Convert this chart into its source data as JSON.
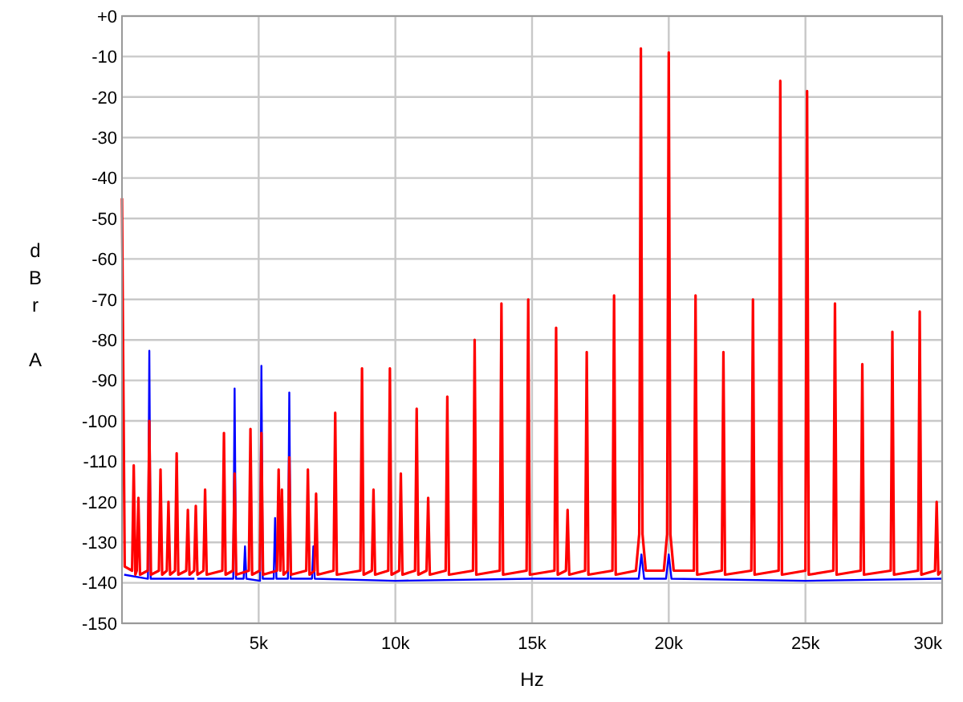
{
  "chart_data": {
    "type": "line",
    "xlabel": "Hz",
    "ylabel": "dBr A",
    "xlim": [
      0,
      30000
    ],
    "ylim": [
      -150,
      0
    ],
    "xticks": [
      {
        "value": 5000,
        "label": "5k"
      },
      {
        "value": 10000,
        "label": "10k"
      },
      {
        "value": 15000,
        "label": "15k"
      },
      {
        "value": 20000,
        "label": "20k"
      },
      {
        "value": 25000,
        "label": "25k"
      },
      {
        "value": 30000,
        "label": "30k"
      }
    ],
    "yticks": [
      {
        "value": 0,
        "label": "+0"
      },
      -10,
      -20,
      -30,
      -40,
      -50,
      -60,
      -70,
      -80,
      -90,
      -100,
      -110,
      -120,
      -130,
      -140,
      -150
    ],
    "grid": true,
    "line_style": "solid",
    "series": [
      {
        "color": "#0000ff",
        "x": [
          80,
          950,
          1000,
          1050,
          2650,
          2700,
          2750,
          4070,
          4120,
          4170,
          4450,
          4500,
          4550,
          5050,
          5100,
          5150,
          5550,
          5600,
          5650,
          6070,
          6120,
          6170,
          6950,
          7000,
          7050,
          10000,
          15000,
          18900,
          19000,
          19100,
          19900,
          20000,
          20100,
          25000,
          30000
        ],
        "values": [
          -138,
          -139,
          -82.7,
          -139,
          -139,
          null,
          -139,
          -139,
          -92,
          -139,
          -139,
          -131,
          -139,
          -139.5,
          -86.4,
          -139,
          -139,
          -124,
          -139,
          -139,
          -93,
          -139,
          -139,
          -131,
          -139,
          -139.5,
          -139,
          -139,
          -133,
          -139,
          -139,
          -133,
          -139,
          -139.5,
          -139
        ]
      },
      {
        "color": "#ff0000",
        "x": [
          0,
          100,
          370,
          430,
          490,
          540,
          600,
          660,
          940,
          1000,
          1060,
          1350,
          1410,
          1470,
          1640,
          1700,
          1760,
          1940,
          2000,
          2060,
          2350,
          2410,
          2470,
          2640,
          2700,
          2760,
          2980,
          3040,
          3100,
          3670,
          3730,
          3790,
          4060,
          4120,
          4180,
          4640,
          4700,
          4760,
          5040,
          5100,
          5160,
          5670,
          5730,
          5790,
          5850,
          5910,
          6060,
          6120,
          6180,
          6740,
          6800,
          6860,
          7040,
          7100,
          7160,
          7740,
          7800,
          7860,
          8720,
          8780,
          8840,
          9140,
          9200,
          9260,
          9740,
          9800,
          9860,
          10140,
          10200,
          10260,
          10720,
          10780,
          10840,
          11140,
          11200,
          11260,
          11840,
          11900,
          11960,
          12840,
          12900,
          12960,
          13820,
          13880,
          13940,
          14800,
          14860,
          14920,
          15820,
          15880,
          15940,
          16240,
          16300,
          16360,
          16940,
          17000,
          17060,
          17940,
          18000,
          18060,
          18800,
          18920,
          18980,
          19040,
          19160,
          19820,
          19940,
          20000,
          20060,
          20180,
          20920,
          20980,
          21040,
          21940,
          22000,
          22060,
          23020,
          23080,
          23140,
          24020,
          24080,
          24140,
          25000,
          25060,
          25120,
          26020,
          26080,
          26140,
          27020,
          27080,
          27140,
          28120,
          28180,
          28240,
          29120,
          29180,
          29240,
          29740,
          29800,
          29860,
          30000
        ],
        "values": [
          -45,
          -136,
          -137,
          -111,
          -138,
          -137,
          -119,
          -138,
          -137,
          -100,
          -138,
          -137,
          -112,
          -138,
          -137,
          -120,
          -138,
          -137,
          -108,
          -138,
          -137,
          -122,
          -138,
          -137,
          -121,
          -138,
          -137,
          -117,
          -138,
          -137,
          -103,
          -138,
          -137,
          -113,
          -138,
          -137,
          -102,
          -138,
          -137,
          -103,
          -138,
          -137,
          -112,
          -137,
          -117,
          -138,
          -137,
          -109,
          -138,
          -137,
          -112,
          -138,
          -137,
          -118,
          -138,
          -137,
          -98,
          -138,
          -137,
          -87,
          -138,
          -137,
          -117,
          -138,
          -137,
          -87,
          -138,
          -137,
          -113,
          -138,
          -137,
          -97,
          -138,
          -137,
          -119,
          -138,
          -137,
          -94,
          -138,
          -137,
          -80,
          -138,
          -137,
          -71,
          -138,
          -137,
          -70,
          -138,
          -137,
          -77,
          -138,
          -137,
          -122,
          -138,
          -137,
          -83,
          -138,
          -137,
          -69,
          -138,
          -137,
          -128,
          -8,
          -128,
          -137,
          -137,
          -128,
          -9,
          -128,
          -137,
          -137,
          -69,
          -138,
          -137,
          -83,
          -138,
          -137,
          -70,
          -138,
          -137,
          -16,
          -138,
          -137,
          -18.5,
          -138,
          -137,
          -71,
          -138,
          -137,
          -86,
          -138,
          -137,
          -78,
          -138,
          -137,
          -73,
          -138,
          -137,
          -120,
          -138,
          -137
        ]
      }
    ]
  }
}
